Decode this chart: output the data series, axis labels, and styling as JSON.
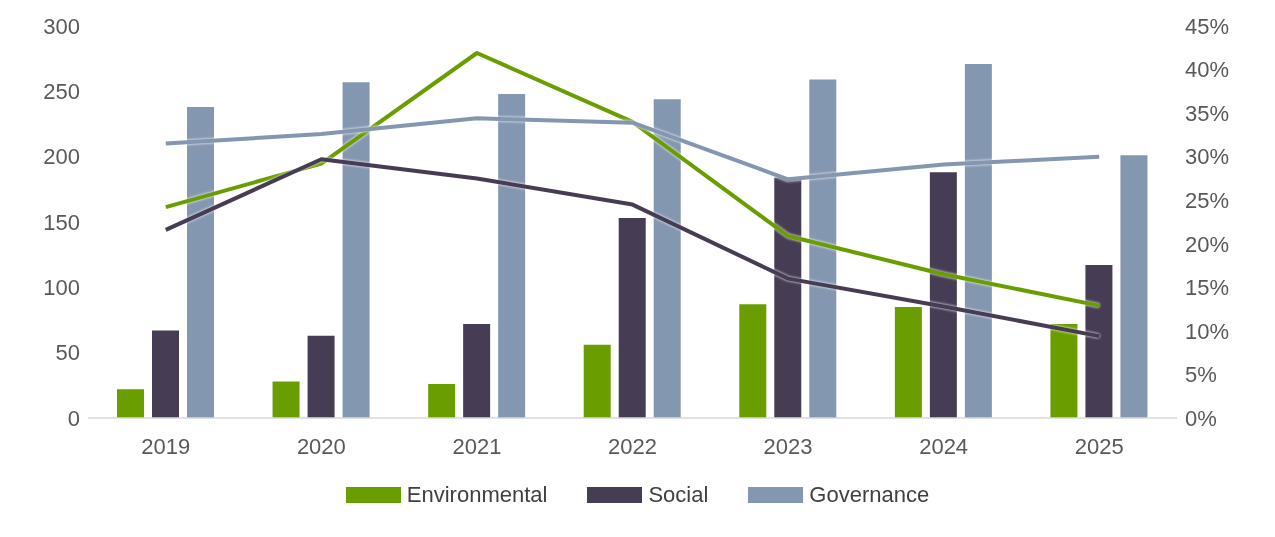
{
  "chart_data": {
    "type": "bar",
    "categories": [
      "2019",
      "2020",
      "2021",
      "2022",
      "2023",
      "2024",
      "2025"
    ],
    "series": [
      {
        "name": "Environmental",
        "color": "#6a9e00",
        "values": [
          22,
          28,
          26,
          56,
          87,
          85,
          72
        ]
      },
      {
        "name": "Social",
        "color": "#463c54",
        "values": [
          67,
          63,
          72,
          153,
          184,
          188,
          117
        ]
      },
      {
        "name": "Governance",
        "color": "#8497b0",
        "values": [
          238,
          257,
          248,
          244,
          259,
          271,
          201
        ]
      },
      {
        "type": "line",
        "axis": "y2",
        "color": "#6a9e00",
        "values": [
          24.2,
          29.2,
          41.9,
          34.0,
          20.9,
          16.5,
          12.9
        ]
      },
      {
        "type": "line",
        "axis": "y2",
        "color": "#463c54",
        "values": [
          21.6,
          29.7,
          27.5,
          24.5,
          16.0,
          12.8,
          9.4
        ]
      },
      {
        "type": "line",
        "axis": "y2",
        "color": "#8497b0",
        "values": [
          31.5,
          32.6,
          34.4,
          33.9,
          27.4,
          29.1,
          30.0
        ]
      }
    ],
    "ylim": [
      0,
      300
    ],
    "yticks": [
      0,
      50,
      100,
      150,
      200,
      250,
      300
    ],
    "y2lim": [
      0,
      45
    ],
    "y2ticks": [
      {
        "value": 0,
        "label": "0%"
      },
      {
        "value": 5,
        "label": "5%"
      },
      {
        "value": 10,
        "label": "10%"
      },
      {
        "value": 15,
        "label": "15%"
      },
      {
        "value": 20,
        "label": "20%"
      },
      {
        "value": 25,
        "label": "25%"
      },
      {
        "value": 30,
        "label": "30%"
      },
      {
        "value": 35,
        "label": "35%"
      },
      {
        "value": 40,
        "label": "40%"
      },
      {
        "value": 45,
        "label": "45%"
      }
    ],
    "grid": false,
    "legend": "bottom",
    "marker": "none",
    "line_style": "solid"
  }
}
